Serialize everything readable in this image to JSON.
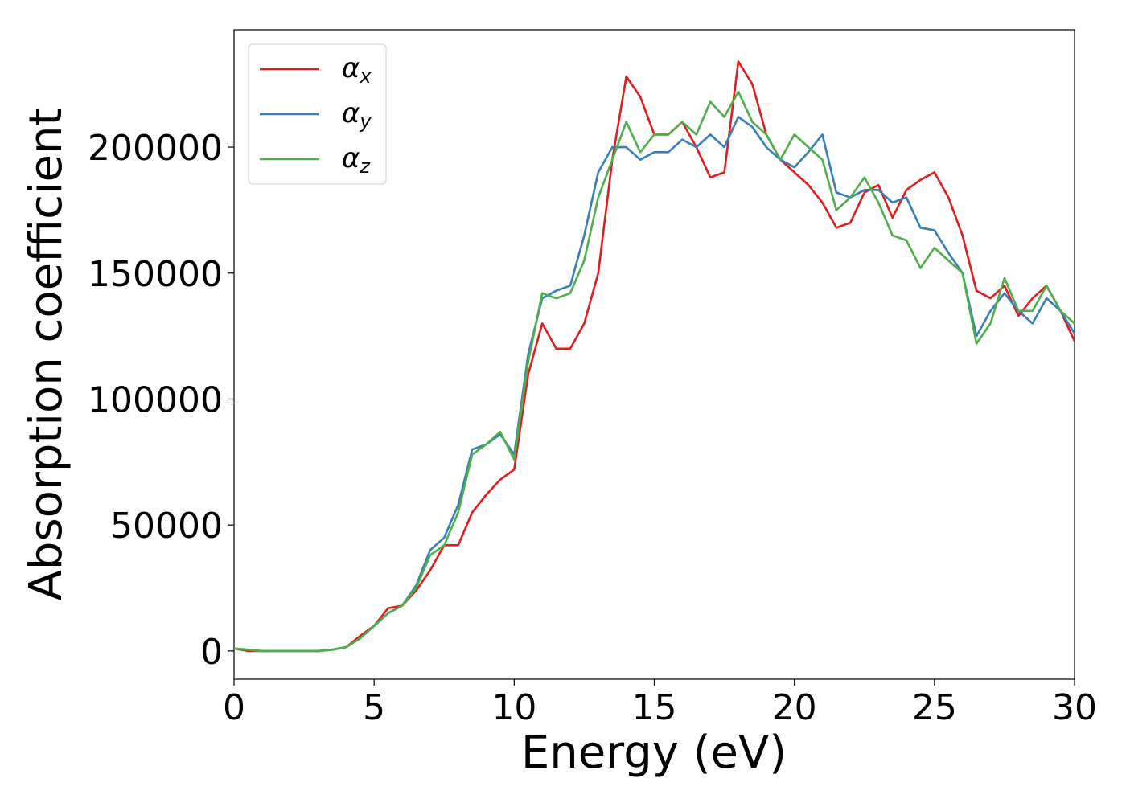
{
  "chart_data": {
    "type": "line",
    "xlabel": "Energy (eV)",
    "ylabel": "Absorption coefficient",
    "x": [
      0,
      0.5,
      1,
      1.5,
      2,
      2.5,
      3,
      3.5,
      4,
      4.5,
      5,
      5.5,
      6,
      6.5,
      7,
      7.5,
      8,
      8.5,
      9,
      9.5,
      10,
      10.5,
      11,
      11.5,
      12,
      12.5,
      13,
      13.5,
      14,
      14.5,
      15,
      15.5,
      16,
      16.5,
      17,
      17.5,
      18,
      18.5,
      19,
      19.5,
      20,
      20.5,
      21,
      21.5,
      22,
      22.5,
      23,
      23.5,
      24,
      24.5,
      25,
      25.5,
      26,
      26.5,
      27,
      27.5,
      28,
      28.5,
      29,
      29.5,
      30
    ],
    "series": [
      {
        "name": "αx",
        "color": "#e41a1c",
        "values": [
          1000,
          0,
          0,
          0,
          0,
          0,
          0,
          500,
          1500,
          6000,
          10000,
          17000,
          18000,
          24000,
          32000,
          42000,
          42000,
          55000,
          62000,
          68000,
          72000,
          110000,
          130000,
          120000,
          120000,
          130000,
          150000,
          195000,
          228000,
          220000,
          205000,
          205000,
          210000,
          200000,
          188000,
          190000,
          234000,
          225000,
          205000,
          195000,
          190000,
          185000,
          178000,
          168000,
          170000,
          182000,
          185000,
          172000,
          183000,
          187000,
          190000,
          180000,
          165000,
          143000,
          140000,
          145000,
          133000,
          140000,
          145000,
          135000,
          123000
        ]
      },
      {
        "name": "αy",
        "color": "#377eb8",
        "values": [
          1000,
          500,
          0,
          0,
          0,
          0,
          0,
          500,
          1500,
          5000,
          10000,
          15000,
          18000,
          26000,
          40000,
          45000,
          58000,
          80000,
          82000,
          86000,
          78000,
          118000,
          140000,
          143000,
          145000,
          165000,
          190000,
          200000,
          200000,
          195000,
          198000,
          198000,
          203000,
          200000,
          205000,
          200000,
          212000,
          208000,
          200000,
          195000,
          192000,
          198000,
          205000,
          182000,
          180000,
          183000,
          183000,
          178000,
          180000,
          168000,
          167000,
          158000,
          150000,
          125000,
          135000,
          142000,
          135000,
          130000,
          140000,
          135000,
          126000
        ]
      },
      {
        "name": "αz",
        "color": "#4daf4a",
        "values": [
          1000,
          500,
          0,
          0,
          0,
          0,
          0,
          500,
          1500,
          5000,
          10000,
          15000,
          18000,
          25000,
          38000,
          42000,
          55000,
          78000,
          82000,
          87000,
          76000,
          115000,
          142000,
          140000,
          142000,
          155000,
          180000,
          195000,
          210000,
          198000,
          205000,
          205000,
          210000,
          205000,
          218000,
          212000,
          222000,
          210000,
          205000,
          195000,
          205000,
          200000,
          195000,
          175000,
          180000,
          188000,
          178000,
          165000,
          163000,
          152000,
          160000,
          155000,
          150000,
          122000,
          130000,
          148000,
          135000,
          135000,
          145000,
          135000,
          130000
        ]
      }
    ],
    "xlim": [
      0,
      30
    ],
    "xticks": [
      0,
      5,
      10,
      15,
      20,
      25,
      30
    ],
    "ylim": [
      -11200,
      246600
    ],
    "yticks": [
      0,
      50000,
      100000,
      150000,
      200000
    ],
    "grid": false,
    "legend": "upper left"
  }
}
